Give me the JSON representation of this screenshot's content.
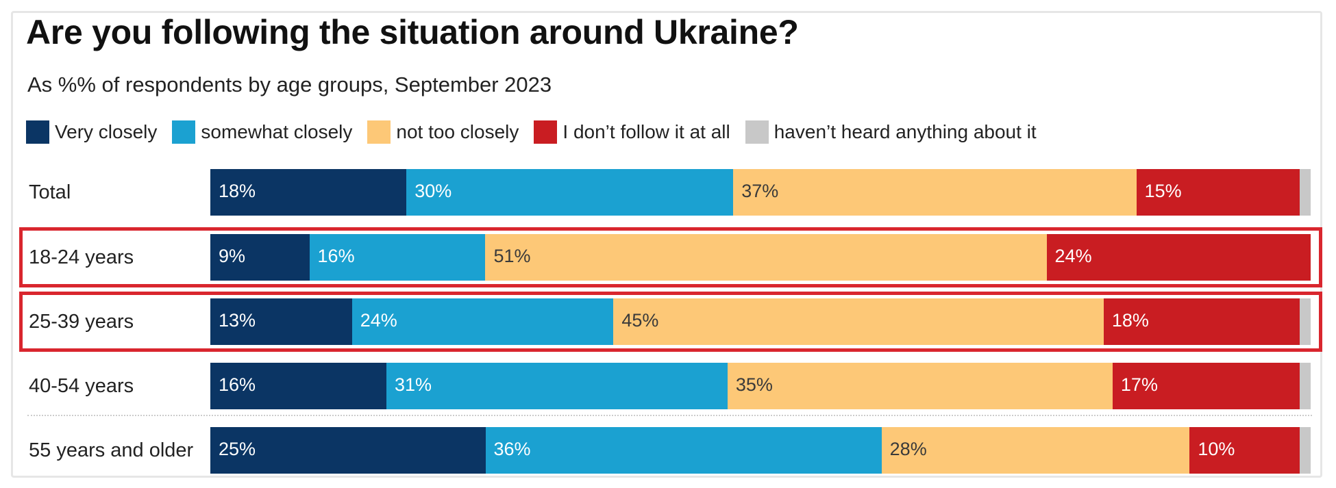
{
  "title": "Are you following the situation around Ukraine?",
  "subtitle": "As %% of respondents by age groups, September 2023",
  "legend": [
    {
      "label": "Very closely",
      "color": "#0b3564"
    },
    {
      "label": "somewhat closely",
      "color": "#1ba1d1"
    },
    {
      "label": "not too closely",
      "color": "#fdc877"
    },
    {
      "label": "I don’t follow it at all",
      "color": "#c91d22"
    },
    {
      "label": "haven’t heard anything about it",
      "color": "#c8c8c8"
    }
  ],
  "chart_data": {
    "type": "bar",
    "orientation": "horizontal",
    "stacked": true,
    "title": "Are you following the situation around Ukraine?",
    "subtitle": "As %% of respondents by age groups, September 2023",
    "categories": [
      "Total",
      "18-24 years",
      "25-39 years",
      "40-54 years",
      "55 years and older"
    ],
    "series": [
      {
        "name": "Very closely",
        "color": "#0b3564",
        "text_color": "#ffffff",
        "values": [
          18,
          9,
          13,
          16,
          25
        ],
        "labels": [
          "18%",
          "9%",
          "13%",
          "16%",
          "25%"
        ]
      },
      {
        "name": "somewhat closely",
        "color": "#1ba1d1",
        "text_color": "#ffffff",
        "values": [
          30,
          16,
          24,
          31,
          36
        ],
        "labels": [
          "30%",
          "16%",
          "24%",
          "31%",
          "36%"
        ]
      },
      {
        "name": "not too closely",
        "color": "#fdc877",
        "text_color": "#3a3a3a",
        "values": [
          37,
          51,
          45,
          35,
          28
        ],
        "labels": [
          "37%",
          "51%",
          "45%",
          "35%",
          "28%"
        ]
      },
      {
        "name": "I don’t follow it at all",
        "color": "#c91d22",
        "text_color": "#ffffff",
        "values": [
          15,
          24,
          18,
          17,
          10
        ],
        "labels": [
          "15%",
          "24%",
          "18%",
          "17%",
          "10%"
        ]
      },
      {
        "name": "haven’t heard anything about it",
        "color": "#c8c8c8",
        "text_color": "#3a3a3a",
        "values": [
          1,
          0,
          1,
          1,
          1
        ],
        "labels": [
          "",
          "",
          "",
          "",
          ""
        ]
      }
    ],
    "xlim": [
      0,
      100
    ],
    "highlighted_categories": [
      "18-24 years",
      "25-39 years"
    ],
    "highlight_color": "#d9262e"
  }
}
